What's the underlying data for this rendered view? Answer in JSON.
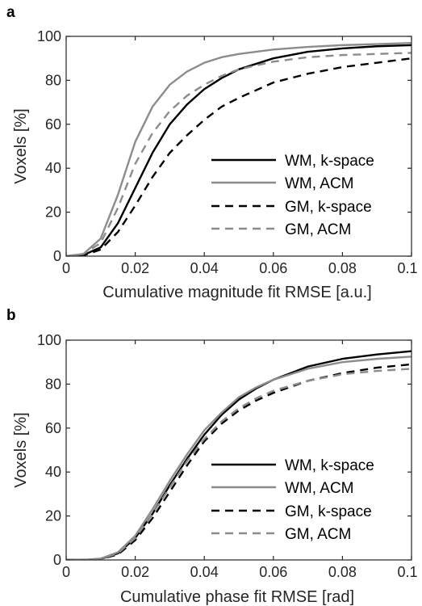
{
  "chart_data": [
    {
      "panel_label": "a",
      "type": "line",
      "xlabel": "Cumulative magnitude fit RMSE [a.u.]",
      "ylabel": "Voxels [%]",
      "xlim": [
        0,
        0.1
      ],
      "ylim": [
        0,
        100
      ],
      "xticks": [
        "0",
        "0.02",
        "0.04",
        "0.06",
        "0.08",
        "0.1"
      ],
      "yticks": [
        "0",
        "20",
        "40",
        "60",
        "80",
        "100"
      ],
      "legend_position": "lower-right",
      "series": [
        {
          "name": "WM, k-space",
          "color": "#000000",
          "dash": "solid",
          "x": [
            0,
            0.005,
            0.01,
            0.015,
            0.02,
            0.025,
            0.03,
            0.035,
            0.04,
            0.045,
            0.05,
            0.06,
            0.07,
            0.08,
            0.09,
            0.1
          ],
          "y": [
            0,
            0.5,
            4,
            15,
            31,
            47,
            60,
            69,
            76,
            81,
            85,
            90,
            93,
            94.5,
            95.5,
            96
          ]
        },
        {
          "name": "WM, ACM",
          "color": "#8c8c8c",
          "dash": "solid",
          "x": [
            0,
            0.005,
            0.01,
            0.015,
            0.02,
            0.025,
            0.03,
            0.035,
            0.04,
            0.045,
            0.05,
            0.06,
            0.07,
            0.08,
            0.09,
            0.1
          ],
          "y": [
            0,
            1,
            8,
            28,
            52,
            68,
            78,
            84,
            88,
            90.5,
            92,
            94,
            95.2,
            96,
            96.5,
            97
          ]
        },
        {
          "name": "GM, k-space",
          "color": "#000000",
          "dash": "dashed",
          "x": [
            0,
            0.005,
            0.01,
            0.015,
            0.02,
            0.025,
            0.03,
            0.035,
            0.04,
            0.045,
            0.05,
            0.06,
            0.07,
            0.08,
            0.09,
            0.1
          ],
          "y": [
            0,
            0.3,
            3,
            11,
            23,
            36,
            47,
            55,
            62,
            68,
            72,
            79,
            83,
            86,
            88,
            90
          ]
        },
        {
          "name": "GM, ACM",
          "color": "#8c8c8c",
          "dash": "dashed",
          "x": [
            0,
            0.005,
            0.01,
            0.015,
            0.02,
            0.025,
            0.03,
            0.035,
            0.04,
            0.045,
            0.05,
            0.06,
            0.07,
            0.08,
            0.09,
            0.1
          ],
          "y": [
            0,
            1,
            6,
            22,
            42,
            56,
            66,
            73,
            78,
            82,
            85,
            88.5,
            90.5,
            91.5,
            92,
            92.5
          ]
        }
      ]
    },
    {
      "panel_label": "b",
      "type": "line",
      "xlabel": "Cumulative phase fit RMSE [rad]",
      "ylabel": "Voxels [%]",
      "xlim": [
        0,
        0.1
      ],
      "ylim": [
        0,
        100
      ],
      "xticks": [
        "0",
        "0.02",
        "0.04",
        "0.06",
        "0.08",
        "0.1"
      ],
      "yticks": [
        "0",
        "20",
        "40",
        "60",
        "80",
        "100"
      ],
      "legend_position": "lower-right",
      "series": [
        {
          "name": "WM, k-space",
          "color": "#000000",
          "dash": "solid",
          "x": [
            0,
            0.005,
            0.01,
            0.015,
            0.02,
            0.025,
            0.03,
            0.035,
            0.04,
            0.045,
            0.05,
            0.055,
            0.06,
            0.07,
            0.08,
            0.09,
            0.1
          ],
          "y": [
            0,
            0,
            0.5,
            3,
            10,
            21,
            34,
            46,
            57,
            66,
            73,
            78,
            82,
            88,
            91.5,
            93.5,
            95
          ]
        },
        {
          "name": "WM, ACM",
          "color": "#8c8c8c",
          "dash": "solid",
          "x": [
            0,
            0.005,
            0.01,
            0.015,
            0.02,
            0.025,
            0.03,
            0.035,
            0.04,
            0.045,
            0.05,
            0.055,
            0.06,
            0.07,
            0.08,
            0.09,
            0.1
          ],
          "y": [
            0,
            0,
            0.6,
            3.5,
            11,
            23,
            36,
            48,
            59,
            67,
            74,
            78.5,
            82,
            87,
            90,
            91.5,
            92.5
          ]
        },
        {
          "name": "GM, k-space",
          "color": "#000000",
          "dash": "dashed",
          "x": [
            0,
            0.005,
            0.01,
            0.015,
            0.02,
            0.025,
            0.03,
            0.035,
            0.04,
            0.045,
            0.05,
            0.055,
            0.06,
            0.07,
            0.08,
            0.09,
            0.1
          ],
          "y": [
            0,
            0,
            0.4,
            2.5,
            9,
            19,
            31,
            43,
            54,
            62,
            68,
            72.5,
            76,
            81.5,
            85,
            87.5,
            89
          ]
        },
        {
          "name": "GM, ACM",
          "color": "#8c8c8c",
          "dash": "dashed",
          "x": [
            0,
            0.005,
            0.01,
            0.015,
            0.02,
            0.025,
            0.03,
            0.035,
            0.04,
            0.045,
            0.05,
            0.055,
            0.06,
            0.07,
            0.08,
            0.09,
            0.1
          ],
          "y": [
            0,
            0,
            0.5,
            3,
            10,
            21,
            33,
            45,
            55,
            63,
            69,
            73.5,
            77,
            81.5,
            84.5,
            86,
            87
          ]
        }
      ]
    }
  ]
}
